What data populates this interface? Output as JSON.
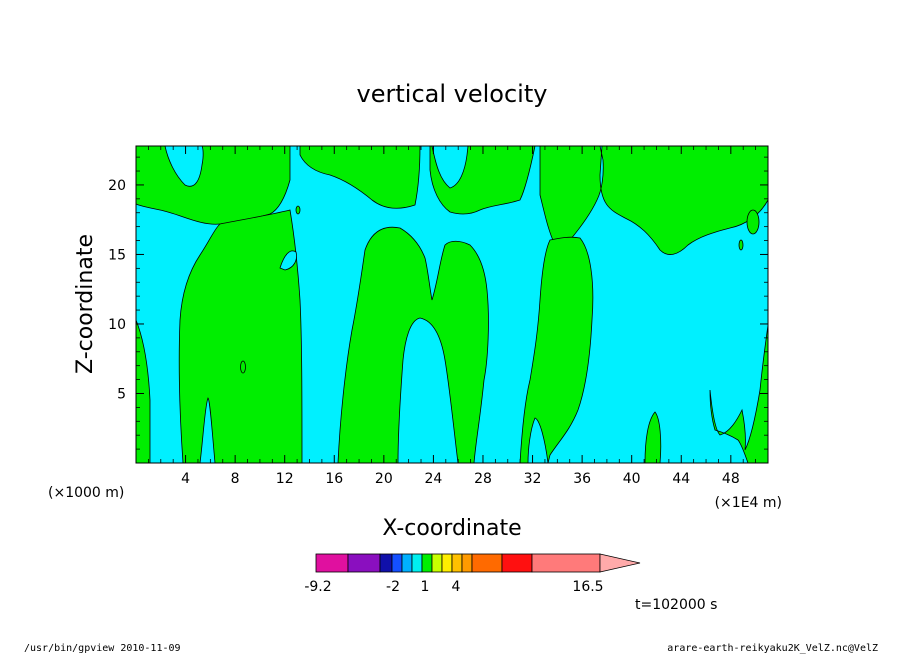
{
  "chart_data": {
    "type": "heatmap",
    "title": "vertical velocity",
    "xlabel": "X-coordinate",
    "ylabel": "Z-coordinate",
    "x_unit_left": "(×1000 m)",
    "x_unit_right": "(×1E4 m)",
    "xlim": [
      0,
      51
    ],
    "ylim": [
      0,
      22.8
    ],
    "x_ticks": [
      4,
      8,
      12,
      16,
      20,
      24,
      28,
      32,
      36,
      40,
      44,
      48
    ],
    "y_ticks": [
      5,
      10,
      15,
      20
    ],
    "colorbar": {
      "colors": [
        "#e0109f",
        "#8a0fbf",
        "#1010aa",
        "#1450ff",
        "#00b0ff",
        "#00f0f0",
        "#00ee00",
        "#c8ff00",
        "#ffee00",
        "#ffc000",
        "#ff9a00",
        "#ff6a00",
        "#ff1010",
        "#ff7a7a",
        "#ffaaaa"
      ],
      "labels": [
        "-9.2",
        "-2",
        "1",
        "4",
        "16.5"
      ]
    },
    "time_label": "t=102000 s",
    "regions": {
      "negative_color": "#00f0ff",
      "positive_color": "#00ee00"
    }
  },
  "footer": {
    "left": "/usr/bin/gpview  2010-11-09",
    "right": "arare-earth-reikyaku2K_VelZ.nc@VelZ"
  }
}
